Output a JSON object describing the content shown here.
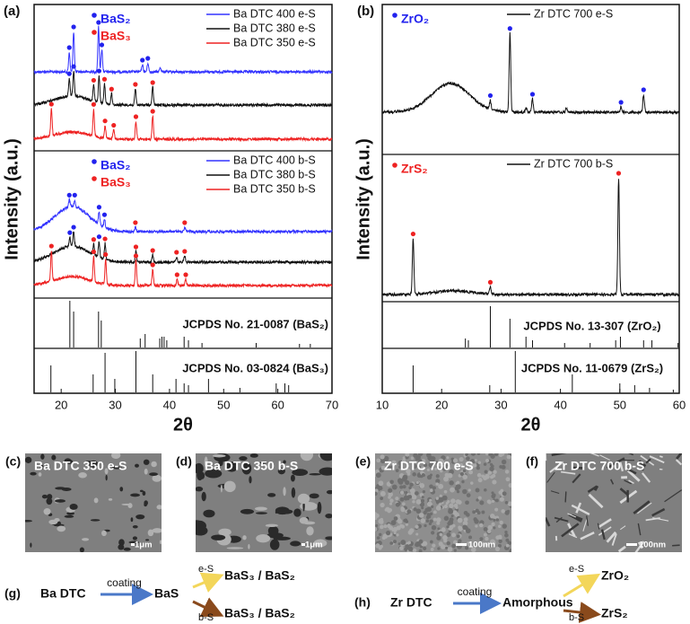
{
  "panels": [
    {
      "label": "(a)",
      "xlim": [
        15,
        70
      ],
      "xticks": [
        20,
        30,
        40,
        50,
        60,
        70
      ],
      "xlabel": "2θ",
      "ylabel": "Intensity (a.u.)",
      "sections": [
        {
          "marker_legend": [
            {
              "name": "BaS₂",
              "color": "#2222ee"
            },
            {
              "name": "BaS₃",
              "color": "#ee2222"
            }
          ],
          "series": [
            {
              "name": "Ba DTC 400 e-S",
              "color": "#3333ff",
              "peaks": {
                "x": [
                  21.5,
                  22.3,
                  26.9,
                  27.5,
                  35,
                  36,
                  38.3
                ],
                "height": [
                  22,
                  45,
                  50,
                  25,
                  8,
                  10,
                  5
                ]
              },
              "markers": {
                "x": [
                  21.5,
                  22.3,
                  26.9,
                  27.5,
                  35,
                  36
                ],
                "phase": [
                  0,
                  0,
                  0,
                  0,
                  0,
                  0
                ]
              }
            },
            {
              "name": "Ba DTC 380 e-S",
              "color": "#111111",
              "hump": {
                "x": 22,
                "height": 10
              },
              "peaks": {
                "x": [
                  21.5,
                  22.3,
                  26,
                  27,
                  28,
                  29.3,
                  33.7,
                  36.9
                ],
                "height": [
                  20,
                  28,
                  18,
                  30,
                  22,
                  12,
                  18,
                  20
                ]
              },
              "markers": {
                "x": [
                  21.5,
                  22.3,
                  26,
                  27,
                  28,
                  29.3,
                  33.7,
                  36.9
                ],
                "phase": [
                  0,
                  0,
                  1,
                  0,
                  1,
                  1,
                  1,
                  1
                ]
              }
            },
            {
              "name": "Ba DTC 350 e-S",
              "color": "#ee2222",
              "hump": {
                "x": 22,
                "height": 8
              },
              "peaks": {
                "x": [
                  18.2,
                  26,
                  28.1,
                  29.7,
                  33.8,
                  36.9
                ],
                "height": [
                  30,
                  30,
                  14,
                  10,
                  20,
                  26
                ]
              },
              "markers": {
                "x": [
                  18.2,
                  26,
                  28.1,
                  29.7,
                  33.8,
                  36.9
                ],
                "phase": [
                  1,
                  1,
                  1,
                  1,
                  1,
                  1
                ]
              }
            }
          ]
        },
        {
          "marker_legend": [
            {
              "name": "BaS₂",
              "color": "#2222ee"
            },
            {
              "name": "BaS₃",
              "color": "#ee2222"
            }
          ],
          "series": [
            {
              "name": "Ba DTC 400 b-S",
              "color": "#3333ff",
              "hump": {
                "x": 22,
                "height": 28
              },
              "peaks": {
                "x": [
                  21.5,
                  22.5,
                  27,
                  28,
                  33.7,
                  42.8
                ],
                "height": [
                  8,
                  8,
                  14,
                  9,
                  5,
                  5
                ]
              },
              "markers": {
                "x": [
                  21.5,
                  22.5,
                  27,
                  28,
                  33.7,
                  42.8
                ],
                "phase": [
                  0,
                  0,
                  0,
                  0,
                  1,
                  1
                ]
              }
            },
            {
              "name": "Ba DTC 380 b-S",
              "color": "#111111",
              "hump": {
                "x": 22,
                "height": 18
              },
              "peaks": {
                "x": [
                  21.6,
                  22.3,
                  26,
                  27,
                  28.1,
                  33.8,
                  36.9,
                  41.3,
                  42.8
                ],
                "height": [
                  10,
                  16,
                  12,
                  18,
                  18,
                  12,
                  8,
                  6,
                  7
                ]
              },
              "markers": {
                "x": [
                  21.6,
                  22.3,
                  26,
                  27,
                  28.1,
                  33.8,
                  36.9,
                  41.3,
                  42.8
                ],
                "phase": [
                  0,
                  0,
                  1,
                  0,
                  1,
                  1,
                  1,
                  1,
                  1
                ]
              }
            },
            {
              "name": "Ba DTC 350 b-S",
              "color": "#ee2222",
              "hump": {
                "x": 22,
                "height": 10
              },
              "peaks": {
                "x": [
                  18.2,
                  26,
                  28.2,
                  33.8,
                  36.9,
                  41.4,
                  43
                ],
                "height": [
                  34,
                  28,
                  28,
                  28,
                  18,
                  7,
                  7
                ]
              },
              "markers": {
                "x": [
                  18.2,
                  26,
                  28.2,
                  33.8,
                  36.9,
                  41.4,
                  43
                ],
                "phase": [
                  1,
                  1,
                  1,
                  1,
                  1,
                  1,
                  1
                ]
              }
            }
          ]
        },
        {
          "reference": {
            "label": "JCPDS No. 21-0087 (BaS₂)",
            "x": [
              21.6,
              22.3,
              26.9,
              27.4,
              34.6,
              35.5,
              38.2,
              38.6,
              39,
              39.5,
              42.7,
              43.5,
              46,
              56,
              64,
              66
            ],
            "height": [
              52,
              40,
              40,
              30,
              10,
              15,
              10,
              12,
              12,
              8,
              12,
              8,
              5,
              5,
              4,
              4
            ]
          }
        },
        {
          "reference": {
            "label": "JCPDS No. 03-0824 (BaS₃)",
            "x": [
              18.1,
              25.9,
              28.1,
              29.9,
              33.8,
              36.9,
              41.2,
              42.7,
              43.5,
              47.2,
              53,
              59.7,
              61.3,
              62
            ],
            "height": [
              30,
              20,
              44,
              15,
              46,
              20,
              15,
              10,
              8,
              15,
              5,
              10,
              10,
              8
            ]
          }
        }
      ]
    },
    {
      "label": "(b)",
      "xlim": [
        10,
        60
      ],
      "xticks": [
        10,
        20,
        30,
        40,
        50,
        60
      ],
      "xlabel": "2θ",
      "ylabel": "Intensity (a.u.)",
      "sections": [
        {
          "marker_legend": [
            {
              "name": "ZrO₂",
              "color": "#2222ee"
            }
          ],
          "series": [
            {
              "name": "Zr DTC 700 e-S",
              "color": "#111111",
              "hump": {
                "x": 21.5,
                "height": 32
              },
              "peaks": {
                "x": [
                  28.2,
                  31.5,
                  34.2,
                  35.3,
                  41,
                  50.2,
                  54
                ],
                "height": [
                  10,
                  88,
                  5,
                  15,
                  5,
                  6,
                  20
                ]
              },
              "markers": {
                "x": [
                  28.2,
                  31.5,
                  35.3,
                  50.2,
                  54
                ],
                "phase": [
                  0,
                  0,
                  0,
                  0,
                  0
                ]
              }
            }
          ]
        },
        {
          "marker_legend": [
            {
              "name": "ZrS₂",
              "color": "#ee2222"
            }
          ],
          "series": [
            {
              "name": "Zr DTC 700 b-S",
              "color": "#111111",
              "hump": {
                "x": 22,
                "height": 4
              },
              "peaks": {
                "x": [
                  15.2,
                  28.2,
                  49.8
                ],
                "height": [
                  62,
                  8,
                  130
                ]
              },
              "markers": {
                "x": [
                  15.2,
                  28.2,
                  49.8
                ],
                "phase": [
                  0,
                  0,
                  0
                ]
              }
            }
          ]
        },
        {
          "reference": {
            "label": "JCPDS No. 13-307 (ZrO₂)",
            "x": [
              24,
              24.5,
              28.2,
              31.5,
              34.2,
              35.3,
              40.7,
              45,
              49.3,
              50.1,
              54,
              55.4,
              59.8
            ],
            "height": [
              10,
              8,
              46,
              32,
              12,
              8,
              5,
              5,
              8,
              12,
              8,
              8,
              5
            ]
          }
        },
        {
          "reference": {
            "label": "JCPDS No. 11-0679 (ZrS₂)",
            "x": [
              15.2,
              28.1,
              32.4,
              42,
              50,
              52.5,
              55,
              59
            ],
            "height": [
              30,
              8,
              46,
              20,
              10,
              8,
              5,
              3
            ]
          }
        }
      ]
    }
  ],
  "images": [
    {
      "label": "(c)",
      "title": "Ba DTC 350 e-S",
      "scale": "1μm"
    },
    {
      "label": "(d)",
      "title": "Ba DTC 350  b-S",
      "scale": "1μm"
    },
    {
      "label": "(e)",
      "title": "Zr DTC 700 e-S",
      "scale": "100nm"
    },
    {
      "label": "(f)",
      "title": "Zr DTC 700 b-S",
      "scale": "100nm"
    }
  ],
  "schemes": [
    {
      "label": "(g)",
      "start": "Ba DTC",
      "step": "coating",
      "intermediate": "BaS",
      "branches": [
        {
          "label": "e-S",
          "product": "BaS₃ / BaS₂"
        },
        {
          "label": "b-S",
          "product": "BaS₃ / BaS₂"
        }
      ]
    },
    {
      "label": "(h)",
      "start": "Zr DTC",
      "step": "coating",
      "intermediate": "Amorphous",
      "branches": [
        {
          "label": "e-S",
          "product": "ZrO₂"
        },
        {
          "label": "b-S",
          "product": "ZrS₂"
        }
      ]
    }
  ]
}
